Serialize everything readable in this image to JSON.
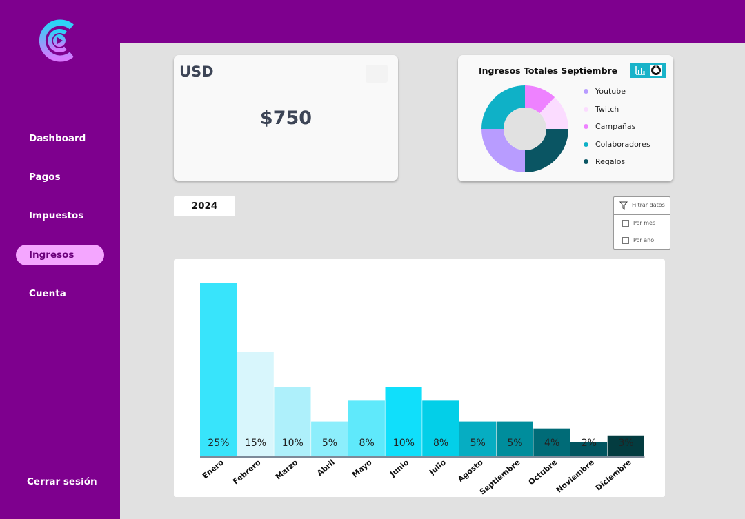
{
  "sidebar": {
    "items": [
      {
        "label": "Dashboard"
      },
      {
        "label": "Pagos"
      },
      {
        "label": "Impuestos"
      },
      {
        "label": "Ingresos",
        "active": true
      },
      {
        "label": "Cuenta"
      }
    ],
    "logout_label": "Cerrar sesión"
  },
  "usd_card": {
    "currency": "USD",
    "amount": "$750"
  },
  "income_card": {
    "title": "Ingresos Totales Septiembre",
    "legend": [
      {
        "label": "Youtube",
        "color": "#b89cff"
      },
      {
        "label": "Twitch",
        "color": "#fbdcff"
      },
      {
        "label": "Campañas",
        "color": "#ee82ff"
      },
      {
        "label": "Colaboradores",
        "color": "#0fb1c7"
      },
      {
        "label": "Regalos",
        "color": "#0a5563"
      }
    ]
  },
  "year_selector": {
    "value": "2024"
  },
  "filter": {
    "title": "Filtrar datos",
    "options": [
      {
        "label": "Por mes"
      },
      {
        "label": "Por año"
      }
    ]
  },
  "chart_data": {
    "type": "bar",
    "title": "",
    "xlabel": "",
    "ylabel": "",
    "categories": [
      "Enero",
      "Febrero",
      "Marzo",
      "Abril",
      "Mayo",
      "Junio",
      "Julio",
      "Agosto",
      "Septiembre",
      "Octubre",
      "Noviembre",
      "Diciembre"
    ],
    "values": [
      25,
      15,
      10,
      5,
      8,
      10,
      8,
      5,
      5,
      4,
      2,
      3
    ],
    "labels": [
      "25%",
      "15%",
      "10%",
      "5%",
      "8%",
      "10%",
      "8%",
      "5%",
      "5%",
      "4%",
      "2%",
      "3%"
    ],
    "colors": [
      "#38e4fb",
      "#d8f6fc",
      "#aef0fb",
      "#8ceefc",
      "#5fe9fb",
      "#10dffb",
      "#03cfe8",
      "#06adc2",
      "#008d9c",
      "#006b77",
      "#015560",
      "#033c40"
    ],
    "ylim": [
      0,
      25
    ],
    "grid": false
  }
}
